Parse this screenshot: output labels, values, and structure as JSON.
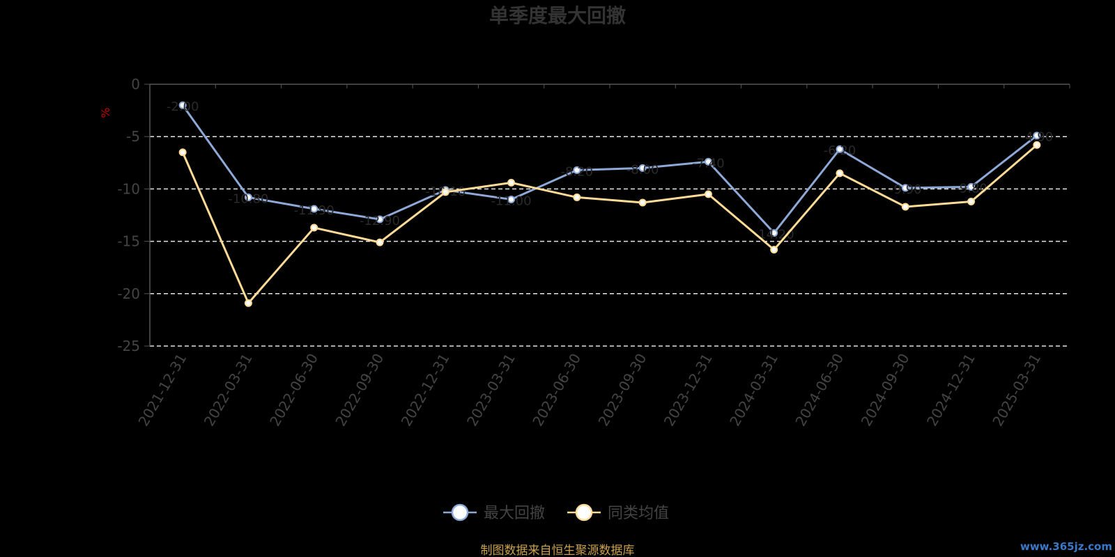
{
  "chart_data": {
    "type": "line",
    "title": "单季度最大回撤",
    "ylabel": "%",
    "ylim": [
      -25,
      0
    ],
    "yticks": [
      0,
      -5,
      -10,
      -15,
      -20,
      -25
    ],
    "grid": true,
    "categories": [
      "2021-12-31",
      "2022-03-31",
      "2022-06-30",
      "2022-09-30",
      "2022-12-31",
      "2023-03-31",
      "2023-06-30",
      "2023-09-30",
      "2023-12-31",
      "2024-03-31",
      "2024-06-30",
      "2024-09-30",
      "2024-12-31",
      "2025-03-31"
    ],
    "series": [
      {
        "name": "最大回撤",
        "color": "#8ea9d8",
        "values": [
          -2.0,
          -10.8,
          -11.9,
          -12.9,
          -10.1,
          -11.0,
          -8.2,
          -8.0,
          -7.4,
          -14.2,
          -6.2,
          -9.9,
          -9.8,
          -4.9
        ]
      },
      {
        "name": "同类均值",
        "color": "#fddb97",
        "values": [
          -6.5,
          -20.9,
          -13.7,
          -15.1,
          -10.3,
          -9.4,
          -10.8,
          -11.3,
          -10.5,
          -15.8,
          -8.5,
          -11.7,
          -11.2,
          -5.8
        ]
      }
    ],
    "legend_position": "bottom"
  },
  "footer": {
    "source": "制图数据来自恒生聚源数据库",
    "watermark": "www.365jz.com"
  }
}
